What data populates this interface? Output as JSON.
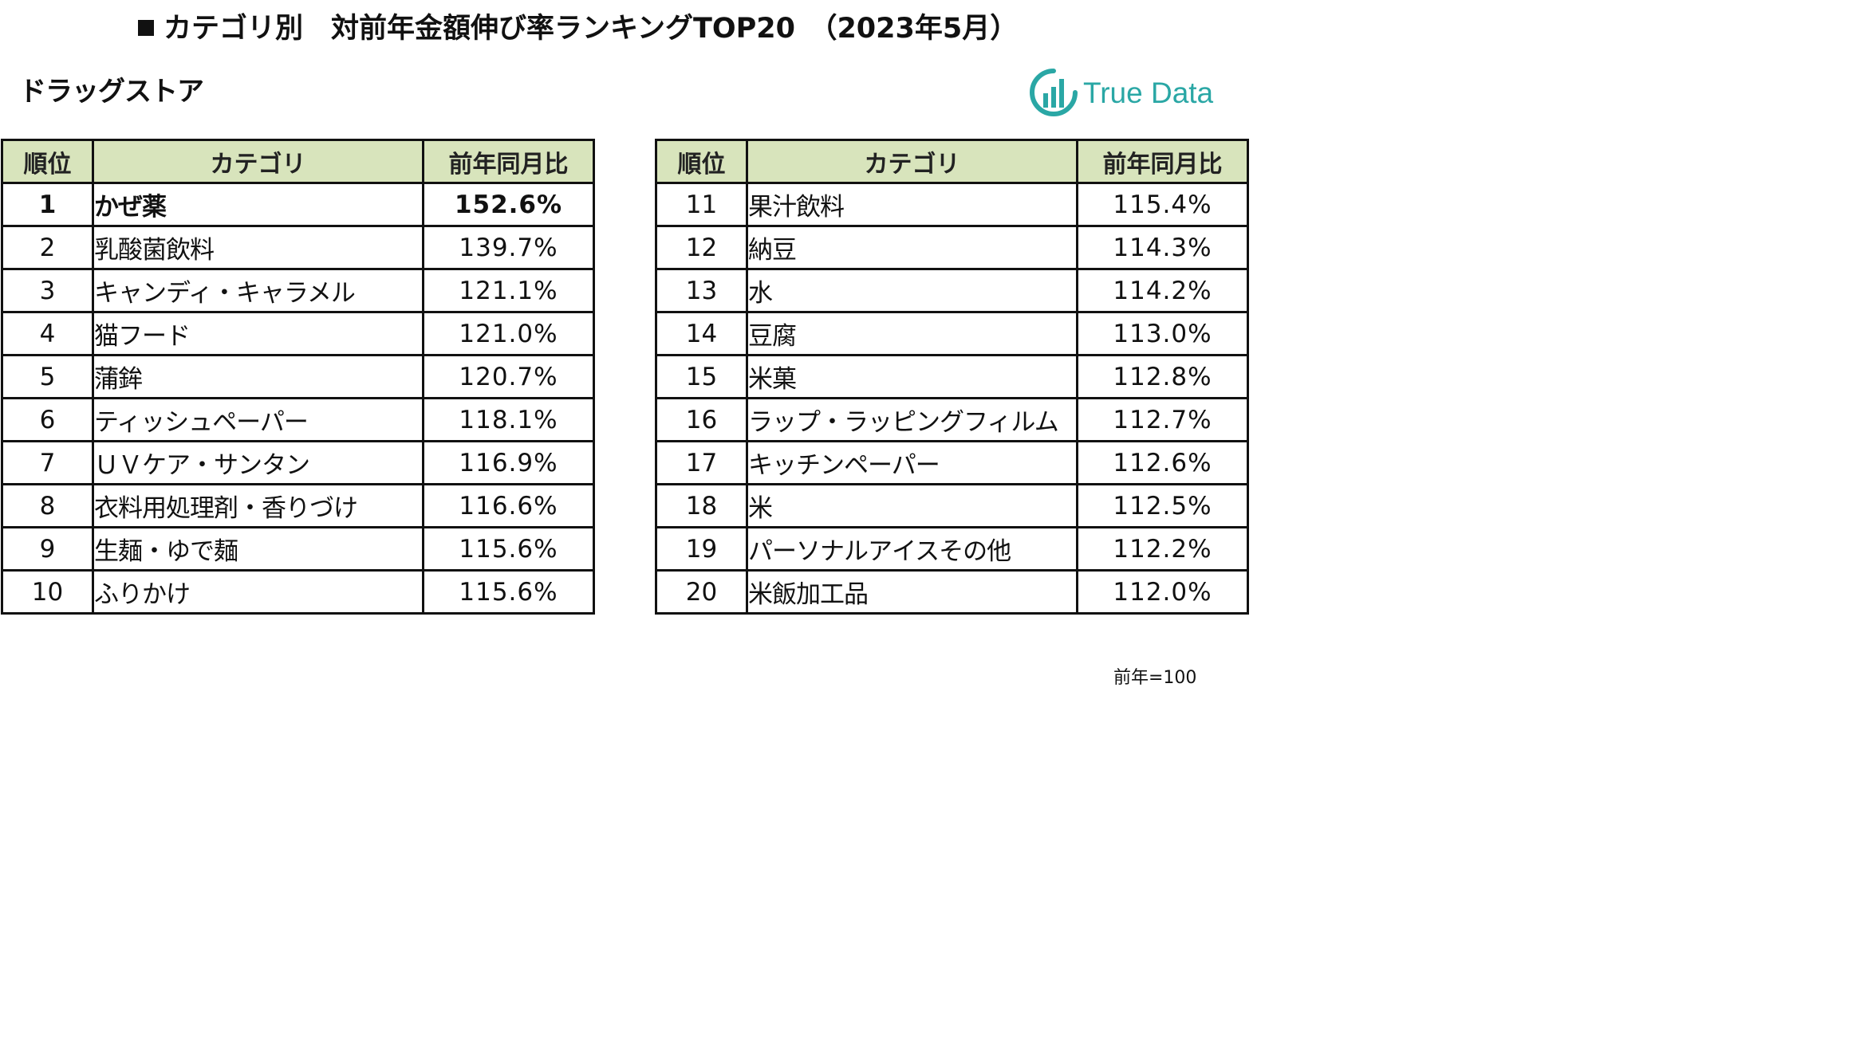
{
  "title": "カテゴリ別　対前年金額伸び率ランキングTOP20　（2023年5月）",
  "subtitle": "ドラッグストア",
  "logo": {
    "text": "True Data",
    "color": "#2aa7a5"
  },
  "table_headers": {
    "rank": "順位",
    "category": "カテゴリ",
    "ratio": "前年同月比"
  },
  "header_bg": "#d8e4bc",
  "left_rows": [
    {
      "rank": "1",
      "category": "かぜ薬",
      "ratio": "152.6%"
    },
    {
      "rank": "2",
      "category": "乳酸菌飲料",
      "ratio": "139.7%"
    },
    {
      "rank": "3",
      "category": "キャンディ・キャラメル",
      "ratio": "121.1%"
    },
    {
      "rank": "4",
      "category": "猫フード",
      "ratio": "121.0%"
    },
    {
      "rank": "5",
      "category": "蒲鉾",
      "ratio": "120.7%"
    },
    {
      "rank": "6",
      "category": "ティッシュペーパー",
      "ratio": "118.1%"
    },
    {
      "rank": "7",
      "category": "ＵＶケア・サンタン",
      "ratio": "116.9%"
    },
    {
      "rank": "8",
      "category": "衣料用処理剤・香りづけ",
      "ratio": "116.6%"
    },
    {
      "rank": "9",
      "category": "生麺・ゆで麺",
      "ratio": "115.6%"
    },
    {
      "rank": "10",
      "category": "ふりかけ",
      "ratio": "115.6%"
    }
  ],
  "right_rows": [
    {
      "rank": "11",
      "category": "果汁飲料",
      "ratio": "115.4%"
    },
    {
      "rank": "12",
      "category": "納豆",
      "ratio": "114.3%"
    },
    {
      "rank": "13",
      "category": "水",
      "ratio": "114.2%"
    },
    {
      "rank": "14",
      "category": "豆腐",
      "ratio": "113.0%"
    },
    {
      "rank": "15",
      "category": "米菓",
      "ratio": "112.8%"
    },
    {
      "rank": "16",
      "category": "ラップ・ラッピングフィルム",
      "ratio": "112.7%"
    },
    {
      "rank": "17",
      "category": "キッチンペーパー",
      "ratio": "112.6%"
    },
    {
      "rank": "18",
      "category": "米",
      "ratio": "112.5%"
    },
    {
      "rank": "19",
      "category": "パーソナルアイスその他",
      "ratio": "112.2%"
    },
    {
      "rank": "20",
      "category": "米飯加工品",
      "ratio": "112.0%"
    }
  ],
  "footnote": "前年=100"
}
